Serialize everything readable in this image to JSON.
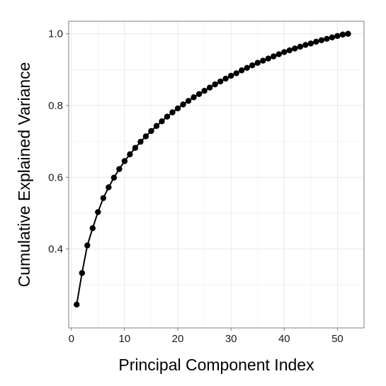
{
  "chart_data": {
    "type": "line",
    "xlabel": "Principal Component Index",
    "ylabel": "Cumulative Explained Variance",
    "xlim": [
      -0.5,
      55
    ],
    "ylim": [
      0.18,
      1.035
    ],
    "xticks": [
      0,
      10,
      20,
      30,
      40,
      50
    ],
    "yticks": [
      0.4,
      0.6,
      0.8,
      1.0
    ],
    "xtick_labels": [
      "0",
      "10",
      "20",
      "30",
      "40",
      "50"
    ],
    "ytick_labels": [
      "0.4",
      "0.6",
      "0.8",
      "1.0"
    ],
    "grid": true,
    "legend": "none",
    "line_color": "#000000",
    "point_color": "#000000",
    "series": [
      {
        "x": [
          1,
          2,
          3,
          4,
          5,
          6,
          7,
          8,
          9,
          10,
          11,
          12,
          13,
          14,
          15,
          16,
          17,
          18,
          19,
          20,
          21,
          22,
          23,
          24,
          25,
          26,
          27,
          28,
          29,
          30,
          31,
          32,
          33,
          34,
          35,
          36,
          37,
          38,
          39,
          40,
          41,
          42,
          43,
          44,
          45,
          46,
          47,
          48,
          49,
          50,
          51,
          52
        ],
        "values": [
          0.245,
          0.333,
          0.41,
          0.458,
          0.503,
          0.542,
          0.572,
          0.599,
          0.623,
          0.645,
          0.664,
          0.682,
          0.699,
          0.714,
          0.729,
          0.743,
          0.756,
          0.769,
          0.781,
          0.792,
          0.803,
          0.813,
          0.823,
          0.832,
          0.841,
          0.85,
          0.859,
          0.867,
          0.875,
          0.883,
          0.89,
          0.898,
          0.905,
          0.912,
          0.919,
          0.925,
          0.931,
          0.937,
          0.943,
          0.949,
          0.954,
          0.959,
          0.964,
          0.969,
          0.973,
          0.978,
          0.982,
          0.986,
          0.99,
          0.994,
          0.998,
          1.0
        ]
      }
    ]
  }
}
